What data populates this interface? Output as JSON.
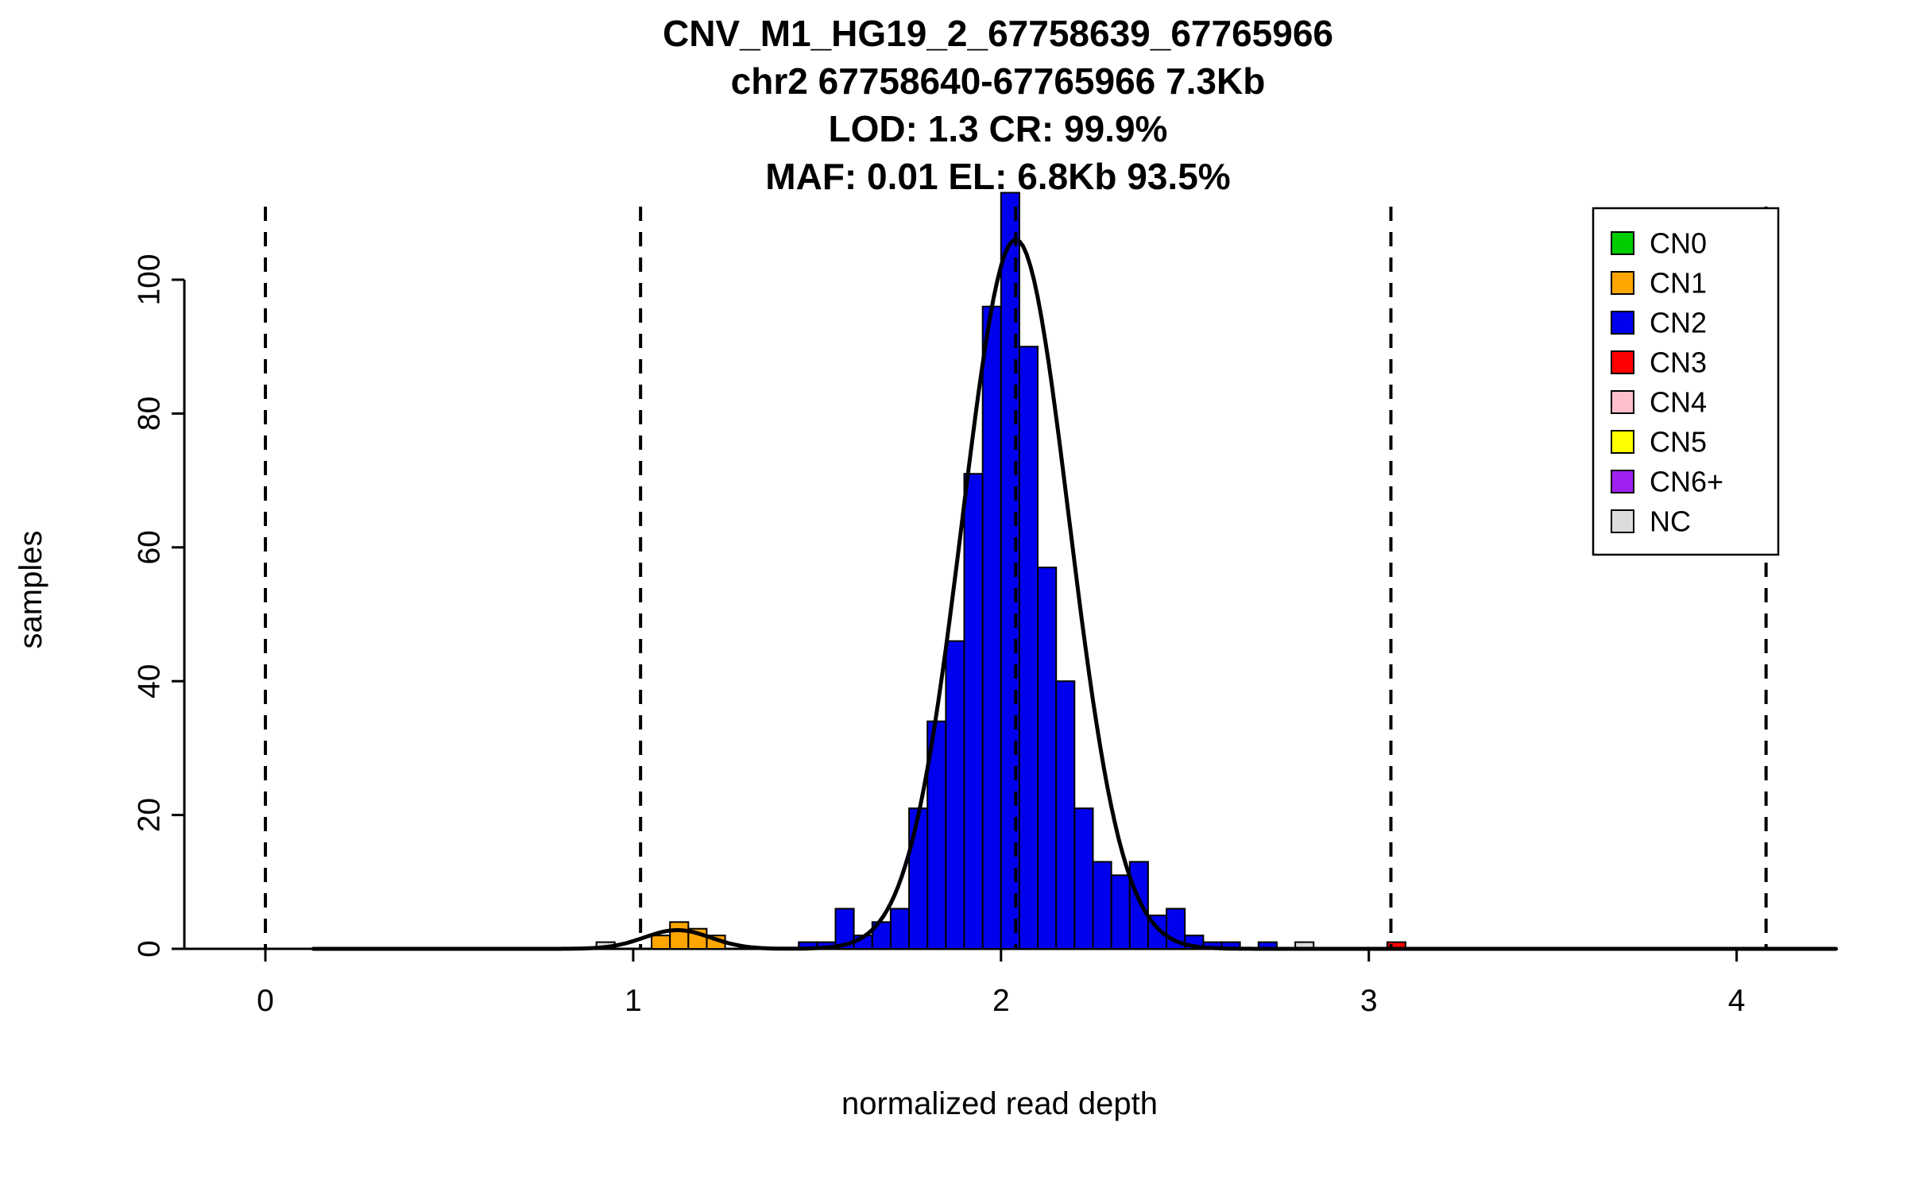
{
  "title": {
    "line1": "CNV_M1_HG19_2_67758639_67765966",
    "line2": "chr2 67758640-67765966 7.3Kb",
    "line3": "LOD: 1.3 CR: 99.9%",
    "line4": "MAF: 0.01 EL: 6.8Kb 93.5%"
  },
  "axes": {
    "xlabel": "normalized read depth",
    "ylabel": "samples",
    "x_ticks": [
      0,
      1,
      2,
      3,
      4
    ],
    "y_ticks": [
      0,
      20,
      40,
      60,
      80,
      100
    ],
    "xlim": [
      -0.2,
      4.3
    ],
    "ylim": [
      0,
      115
    ],
    "grid": false
  },
  "colors": {
    "CN0": "#00CD00",
    "CN1": "#FFA500",
    "CN2": "#0000EE",
    "CN3": "#FF0000",
    "CN4": "#FFC0CB",
    "CN5": "#FFFF00",
    "CN6+": "#A020F0",
    "NC": "#DCDCDC",
    "curve": "#000000",
    "dashed": "#000000"
  },
  "legend": {
    "position": "top-right",
    "items": [
      "CN0",
      "CN1",
      "CN2",
      "CN3",
      "CN4",
      "CN5",
      "CN6+",
      "NC"
    ]
  },
  "chart_data": {
    "type": "bar",
    "subtype": "histogram-with-density-curve",
    "xlabel": "normalized read depth",
    "ylabel": "samples",
    "bin_width": 0.05,
    "bars": [
      {
        "x": 0.9,
        "h": 1,
        "cn": "NC"
      },
      {
        "x": 1.05,
        "h": 2,
        "cn": "CN1"
      },
      {
        "x": 1.1,
        "h": 4,
        "cn": "CN1"
      },
      {
        "x": 1.15,
        "h": 3,
        "cn": "CN1"
      },
      {
        "x": 1.2,
        "h": 2,
        "cn": "CN1"
      },
      {
        "x": 1.45,
        "h": 1,
        "cn": "CN2"
      },
      {
        "x": 1.5,
        "h": 1,
        "cn": "CN2"
      },
      {
        "x": 1.55,
        "h": 6,
        "cn": "CN2"
      },
      {
        "x": 1.6,
        "h": 2,
        "cn": "CN2"
      },
      {
        "x": 1.65,
        "h": 4,
        "cn": "CN2"
      },
      {
        "x": 1.7,
        "h": 6,
        "cn": "CN2"
      },
      {
        "x": 1.75,
        "h": 21,
        "cn": "CN2"
      },
      {
        "x": 1.8,
        "h": 34,
        "cn": "CN2"
      },
      {
        "x": 1.85,
        "h": 46,
        "cn": "CN2"
      },
      {
        "x": 1.9,
        "h": 71,
        "cn": "CN2"
      },
      {
        "x": 1.95,
        "h": 96,
        "cn": "CN2"
      },
      {
        "x": 2.0,
        "h": 113,
        "cn": "CN2"
      },
      {
        "x": 2.05,
        "h": 90,
        "cn": "CN2"
      },
      {
        "x": 2.1,
        "h": 57,
        "cn": "CN2"
      },
      {
        "x": 2.15,
        "h": 40,
        "cn": "CN2"
      },
      {
        "x": 2.2,
        "h": 21,
        "cn": "CN2"
      },
      {
        "x": 2.25,
        "h": 13,
        "cn": "CN2"
      },
      {
        "x": 2.3,
        "h": 11,
        "cn": "CN2"
      },
      {
        "x": 2.35,
        "h": 13,
        "cn": "CN2"
      },
      {
        "x": 2.4,
        "h": 5,
        "cn": "CN2"
      },
      {
        "x": 2.45,
        "h": 6,
        "cn": "CN2"
      },
      {
        "x": 2.5,
        "h": 2,
        "cn": "CN2"
      },
      {
        "x": 2.55,
        "h": 1,
        "cn": "CN2"
      },
      {
        "x": 2.6,
        "h": 1,
        "cn": "CN2"
      },
      {
        "x": 2.7,
        "h": 1,
        "cn": "CN2"
      },
      {
        "x": 2.8,
        "h": 1,
        "cn": "NC"
      },
      {
        "x": 3.05,
        "h": 1,
        "cn": "CN3"
      }
    ],
    "density_curve": {
      "components": [
        {
          "mean": 2.04,
          "sd": 0.145,
          "amp": 106
        },
        {
          "mean": 1.12,
          "sd": 0.09,
          "amp": 2.8
        }
      ],
      "draw_range": [
        0.13,
        4.27
      ]
    },
    "dashed_lines": [
      0.0,
      1.02,
      2.04,
      3.06,
      4.08
    ]
  }
}
